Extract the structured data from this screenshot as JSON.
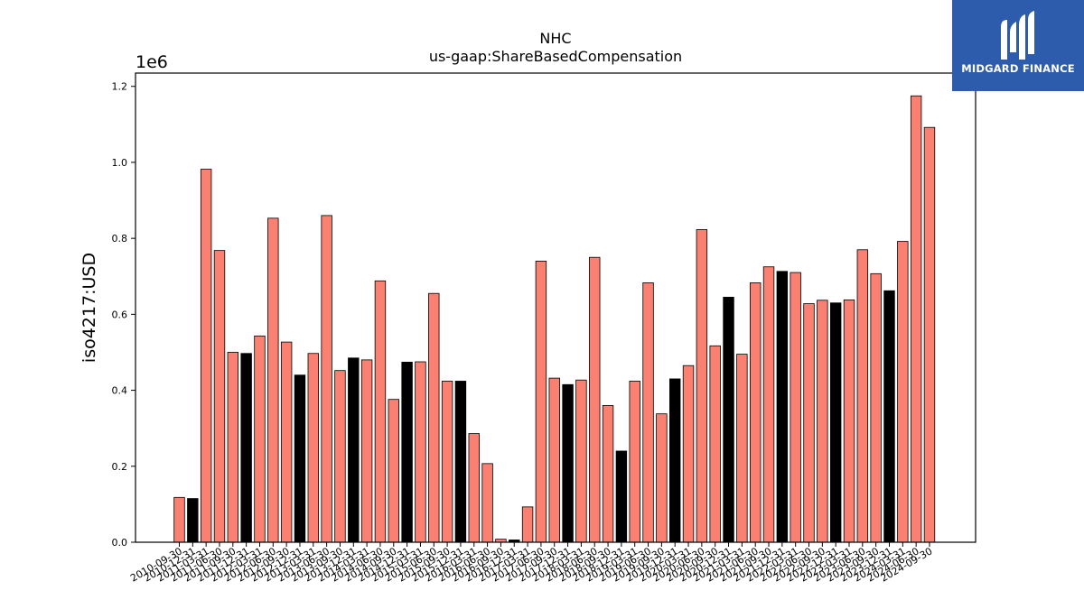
{
  "brand": {
    "name": "MIDGARD FINANCE"
  },
  "chart_data": {
    "type": "bar",
    "title": "NHC",
    "subtitle": "us-gaap:ShareBasedCompensation",
    "ylabel": "iso4217:USD",
    "y_multiplier_label": "1e6",
    "ylim": [
      0,
      1.235
    ],
    "yticks": [
      0.0,
      0.2,
      0.4,
      0.6,
      0.8,
      1.0,
      1.2
    ],
    "ytick_labels": [
      "0.0",
      "0.2",
      "0.4",
      "0.6",
      "0.8",
      "1.0",
      "1.2"
    ],
    "colors": {
      "salmon": "#fa8072",
      "black": "#000000"
    },
    "categories": [
      "2010-09-30",
      "2010-12-31",
      "2011-03-31",
      "2011-06-30",
      "2011-09-30",
      "2011-12-31",
      "2012-03-31",
      "2012-06-30",
      "2012-09-30",
      "2012-12-31",
      "2013-03-31",
      "2013-06-30",
      "2013-09-30",
      "2013-12-31",
      "2014-03-31",
      "2014-06-30",
      "2014-09-30",
      "2014-12-31",
      "2015-03-31",
      "2015-06-30",
      "2015-09-30",
      "2015-12-31",
      "2016-03-31",
      "2016-06-30",
      "2016-09-30",
      "2016-12-31",
      "2017-03-31",
      "2017-06-30",
      "2017-09-30",
      "2017-12-31",
      "2018-03-31",
      "2018-06-30",
      "2018-09-30",
      "2018-12-31",
      "2019-03-31",
      "2019-06-30",
      "2019-09-30",
      "2019-12-31",
      "2020-03-31",
      "2020-06-30",
      "2020-09-30",
      "2020-12-31",
      "2021-03-31",
      "2021-06-30",
      "2021-09-30",
      "2021-12-31",
      "2022-03-31",
      "2022-06-30",
      "2022-09-30",
      "2022-12-31",
      "2023-03-31",
      "2023-06-30",
      "2023-09-30",
      "2023-12-31",
      "2024-03-31",
      "2024-06-30",
      "2024-09-30"
    ],
    "values": [
      0.118,
      0.115,
      0.982,
      0.768,
      0.5,
      0.497,
      0.543,
      0.853,
      0.527,
      0.44,
      0.497,
      0.86,
      0.452,
      0.485,
      0.48,
      0.688,
      0.376,
      0.474,
      0.475,
      0.655,
      0.424,
      0.424,
      0.286,
      0.207,
      0.008,
      0.006,
      0.093,
      0.74,
      0.432,
      0.415,
      0.427,
      0.75,
      0.36,
      0.24,
      0.424,
      0.683,
      0.338,
      0.43,
      0.465,
      0.823,
      0.517,
      0.645,
      0.495,
      0.683,
      0.725,
      0.713,
      0.71,
      0.628,
      0.637,
      0.63,
      0.638,
      0.77,
      0.707,
      0.662,
      0.792,
      1.175,
      1.092
    ],
    "bar_colors": [
      "salmon",
      "black",
      "salmon",
      "salmon",
      "salmon",
      "black",
      "salmon",
      "salmon",
      "salmon",
      "black",
      "salmon",
      "salmon",
      "salmon",
      "black",
      "salmon",
      "salmon",
      "salmon",
      "black",
      "salmon",
      "salmon",
      "salmon",
      "black",
      "salmon",
      "salmon",
      "salmon",
      "black",
      "salmon",
      "salmon",
      "salmon",
      "black",
      "salmon",
      "salmon",
      "salmon",
      "black",
      "salmon",
      "salmon",
      "salmon",
      "black",
      "salmon",
      "salmon",
      "salmon",
      "black",
      "salmon",
      "salmon",
      "salmon",
      "black",
      "salmon",
      "salmon",
      "salmon",
      "black",
      "salmon",
      "salmon",
      "salmon",
      "black",
      "salmon",
      "salmon",
      "salmon"
    ],
    "grid": false,
    "legend": "none"
  }
}
